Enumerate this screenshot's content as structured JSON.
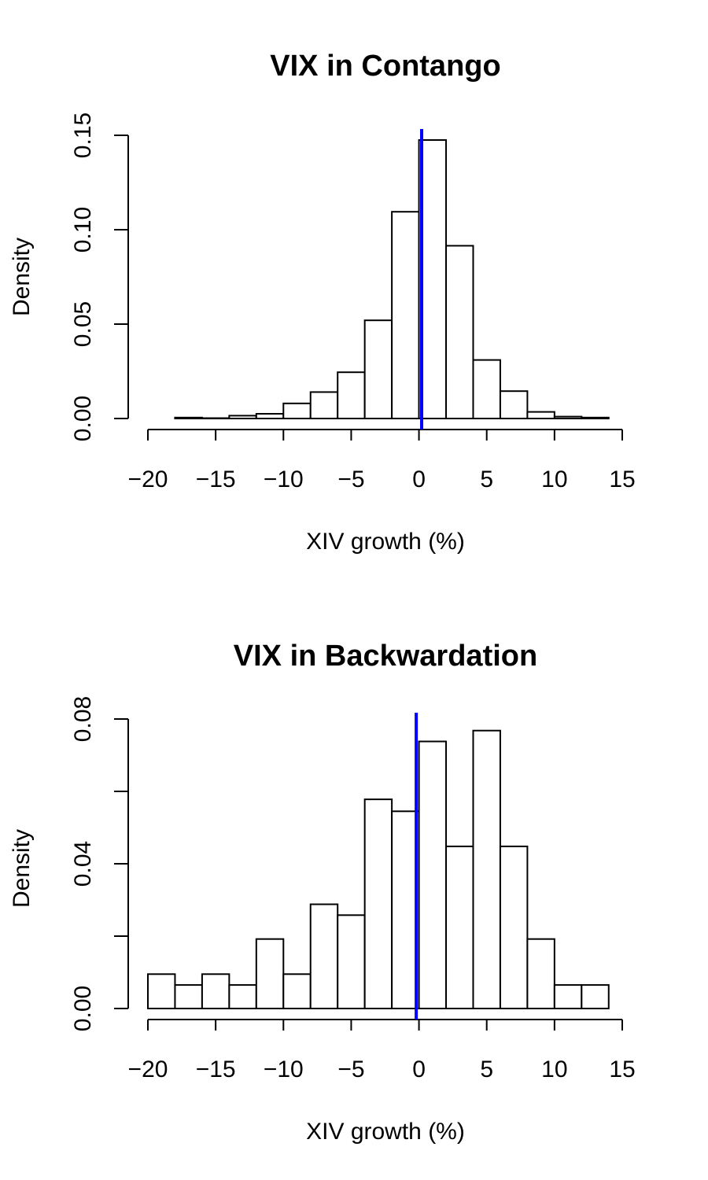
{
  "colors": {
    "reference_line": "#0000ff",
    "bar_fill": "#ffffff",
    "bar_stroke": "#000000"
  },
  "chart_data": [
    {
      "type": "bar",
      "subtype": "histogram",
      "title": "VIX in Contango",
      "xlabel": "XIV growth (%)",
      "ylabel": "Density",
      "xlim": [
        -20,
        15
      ],
      "ylim": [
        0,
        0.15
      ],
      "x_ticks": [
        -20,
        -15,
        -10,
        -5,
        0,
        5,
        10,
        15
      ],
      "x_tick_labels": [
        "−20",
        "−15",
        "−10",
        "−5",
        "0",
        "5",
        "10",
        "15"
      ],
      "y_ticks": [
        0,
        0.05,
        0.1,
        0.15
      ],
      "y_tick_labels": [
        "0.00",
        "0.05",
        "0.10",
        "0.15"
      ],
      "bins": [
        {
          "x0": -18,
          "x1": -16,
          "density": 0.0005
        },
        {
          "x0": -16,
          "x1": -14,
          "density": 0.0002
        },
        {
          "x0": -14,
          "x1": -12,
          "density": 0.0015
        },
        {
          "x0": -12,
          "x1": -10,
          "density": 0.0025
        },
        {
          "x0": -10,
          "x1": -8,
          "density": 0.008
        },
        {
          "x0": -8,
          "x1": -6,
          "density": 0.014
        },
        {
          "x0": -6,
          "x1": -4,
          "density": 0.0245
        },
        {
          "x0": -4,
          "x1": -2,
          "density": 0.052
        },
        {
          "x0": -2,
          "x1": 0,
          "density": 0.1095
        },
        {
          "x0": 0,
          "x1": 2,
          "density": 0.1475
        },
        {
          "x0": 2,
          "x1": 4,
          "density": 0.0915
        },
        {
          "x0": 4,
          "x1": 6,
          "density": 0.031
        },
        {
          "x0": 6,
          "x1": 8,
          "density": 0.0145
        },
        {
          "x0": 8,
          "x1": 10,
          "density": 0.0035
        },
        {
          "x0": 10,
          "x1": 12,
          "density": 0.001
        },
        {
          "x0": 12,
          "x1": 14,
          "density": 0.0005
        }
      ],
      "reference_line_x": 0.2
    },
    {
      "type": "bar",
      "subtype": "histogram",
      "title": "VIX in Backwardation",
      "xlabel": "XIV growth (%)",
      "ylabel": "Density",
      "xlim": [
        -20,
        15
      ],
      "ylim": [
        0,
        0.08
      ],
      "x_ticks": [
        -20,
        -15,
        -10,
        -5,
        0,
        5,
        10,
        15
      ],
      "x_tick_labels": [
        "−20",
        "−15",
        "−10",
        "−5",
        "0",
        "5",
        "10",
        "15"
      ],
      "y_ticks": [
        0,
        0.02,
        0.04,
        0.06,
        0.08
      ],
      "y_tick_labels": [
        "0.00",
        "",
        "0.04",
        "",
        "0.08"
      ],
      "bins": [
        {
          "x0": -20,
          "x1": -18,
          "density": 0.0095
        },
        {
          "x0": -18,
          "x1": -16,
          "density": 0.0065
        },
        {
          "x0": -16,
          "x1": -14,
          "density": 0.0095
        },
        {
          "x0": -14,
          "x1": -12,
          "density": 0.0065
        },
        {
          "x0": -12,
          "x1": -10,
          "density": 0.0192
        },
        {
          "x0": -10,
          "x1": -8,
          "density": 0.0095
        },
        {
          "x0": -8,
          "x1": -6,
          "density": 0.0288
        },
        {
          "x0": -6,
          "x1": -4,
          "density": 0.0258
        },
        {
          "x0": -4,
          "x1": -2,
          "density": 0.0578
        },
        {
          "x0": -2,
          "x1": 0,
          "density": 0.0545
        },
        {
          "x0": 0,
          "x1": 2,
          "density": 0.0738
        },
        {
          "x0": 2,
          "x1": 4,
          "density": 0.0448
        },
        {
          "x0": 4,
          "x1": 6,
          "density": 0.0768
        },
        {
          "x0": 6,
          "x1": 8,
          "density": 0.0448
        },
        {
          "x0": 8,
          "x1": 10,
          "density": 0.0192
        },
        {
          "x0": 10,
          "x1": 12,
          "density": 0.0065
        },
        {
          "x0": 12,
          "x1": 14,
          "density": 0.0065
        }
      ],
      "reference_line_x": -0.2
    }
  ]
}
